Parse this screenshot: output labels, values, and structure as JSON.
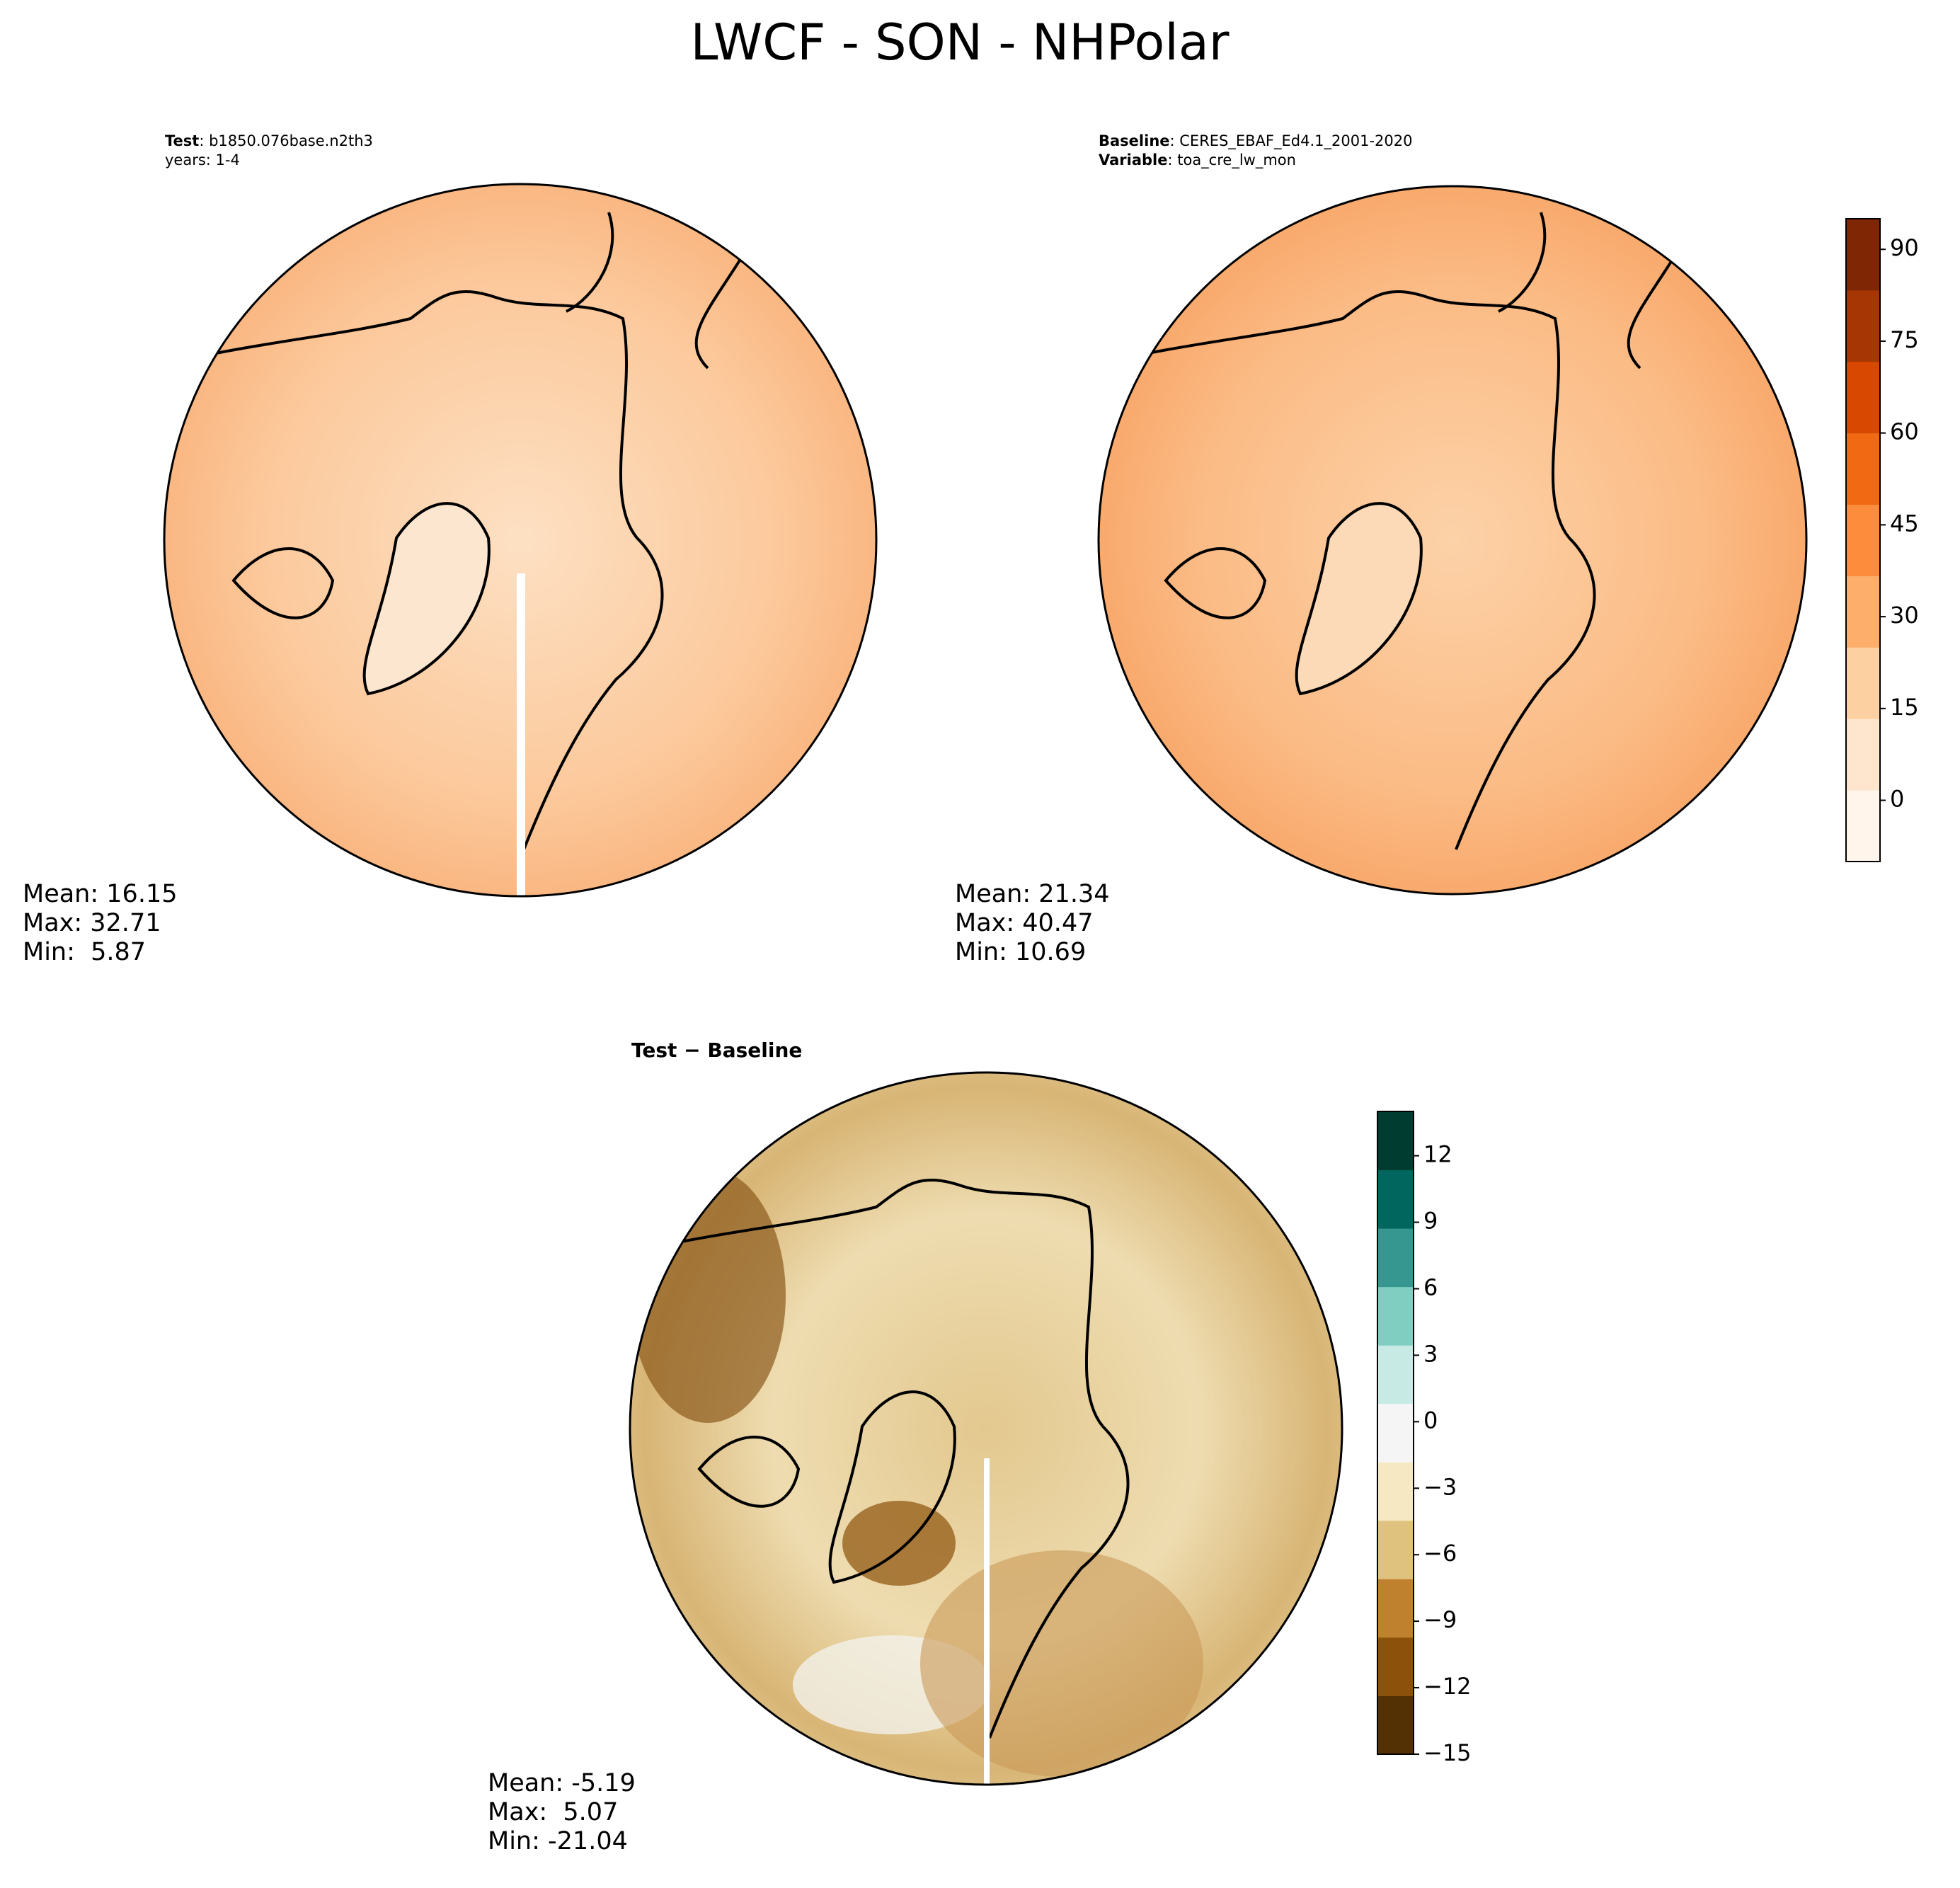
{
  "title": "LWCF - SON - NHPolar",
  "panels": [
    {
      "header": [
        {
          "key": "Test",
          "text": ": b1850.076base.n2th3"
        },
        {
          "key": null,
          "text": "years: 1-4"
        }
      ],
      "stats": [
        "Mean: 16.15",
        "Max: 32.71",
        "Min:  5.87"
      ]
    },
    {
      "header": [
        {
          "key": "Baseline",
          "text": ": CERES_EBAF_Ed4.1_2001-2020"
        },
        {
          "key": "Variable",
          "text": ": toa_cre_lw_mon"
        }
      ],
      "stats": [
        "Mean: 21.34",
        "Max: 40.47",
        "Min: 10.69"
      ]
    },
    {
      "header": [
        {
          "key": "Test − Baseline",
          "text": null
        }
      ],
      "stats": [
        "Mean: -5.19",
        "Max:  5.07",
        "Min: -21.04"
      ]
    }
  ],
  "colorbars": [
    {
      "ylim": [
        -10,
        95
      ],
      "yticks": [
        0,
        15,
        30,
        45,
        60,
        75,
        90
      ],
      "colors": [
        "#fff5eb",
        "#fee6ce",
        "#fdd0a2",
        "#fdae6b",
        "#fd8d3c",
        "#f16913",
        "#d94801",
        "#a63603",
        "#7f2704"
      ]
    },
    {
      "ylim": [
        -15,
        14
      ],
      "yticks": [
        {
          "value": -15,
          "label": "−15"
        },
        {
          "value": -12,
          "label": "−12"
        },
        {
          "value": -9,
          "label": "−9"
        },
        {
          "value": -6,
          "label": "−6"
        },
        {
          "value": -3,
          "label": "−3"
        },
        0,
        3,
        6,
        9,
        12
      ],
      "colors": [
        "#543005",
        "#8c510a",
        "#bf812d",
        "#dfc27d",
        "#f6e8c3",
        "#f5f5f5",
        "#c7eae5",
        "#80cdc1",
        "#35978f",
        "#01665e",
        "#003c30"
      ]
    }
  ]
}
